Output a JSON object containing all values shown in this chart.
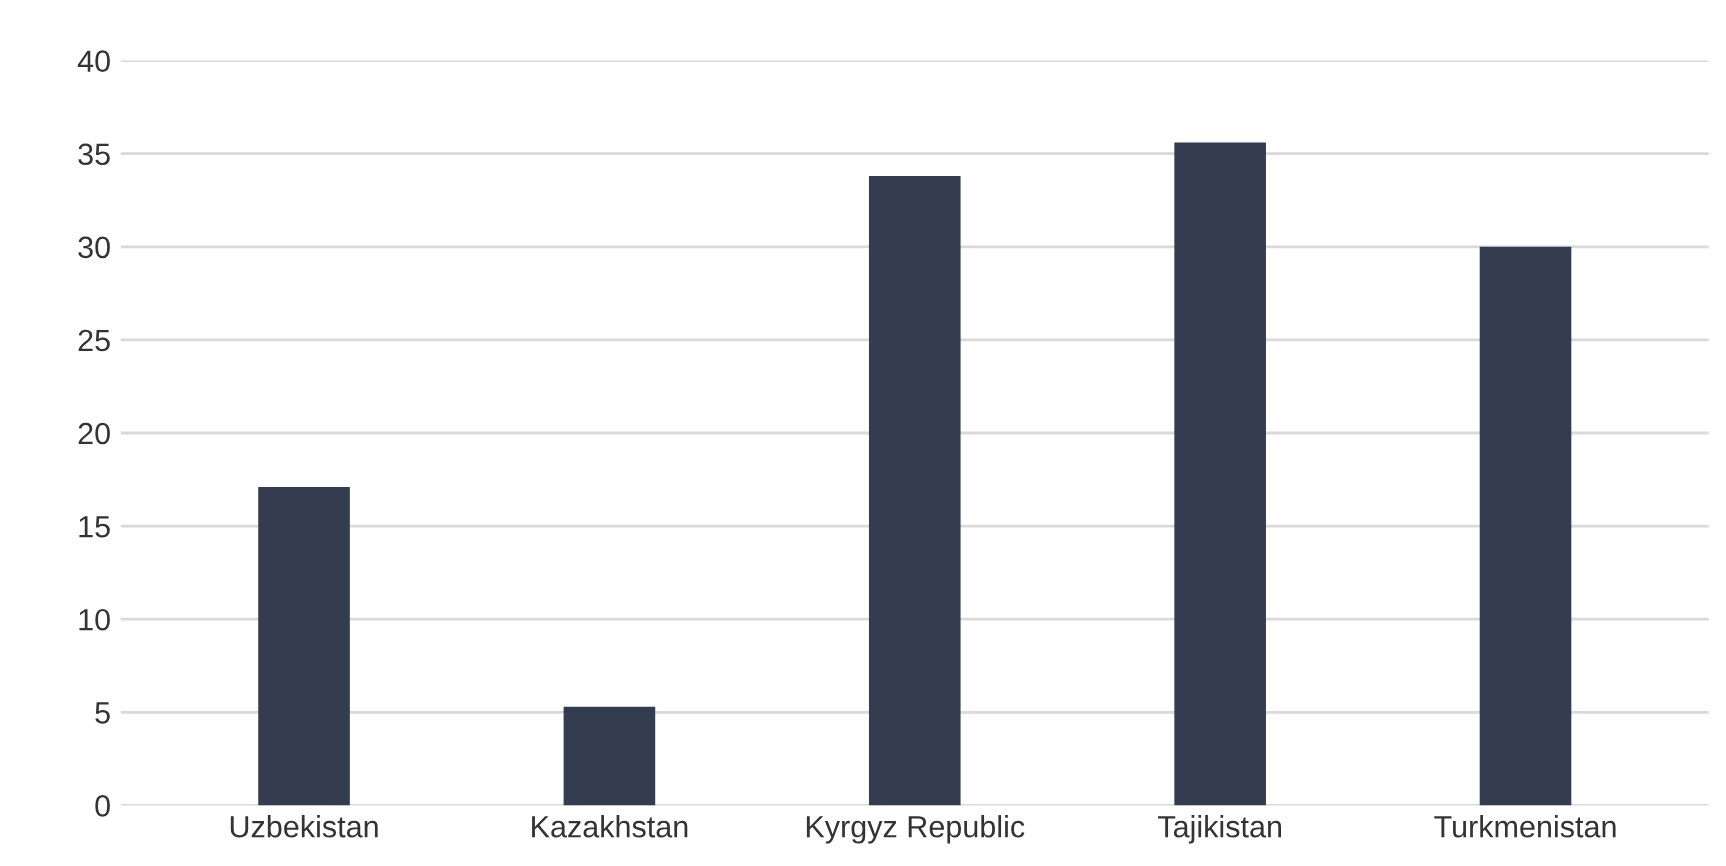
{
  "chart_data": {
    "type": "bar",
    "categories": [
      "Uzbekistan",
      "Kazakhstan",
      "Kyrgyz Republic",
      "Tajikistan",
      "Turkmenistan"
    ],
    "values": [
      17.1,
      5.3,
      33.8,
      35.6,
      30.0
    ],
    "color": "#333d4f",
    "ylim": [
      0,
      40
    ],
    "yticks": [
      0,
      5,
      10,
      15,
      20,
      25,
      30,
      35,
      40
    ],
    "grid": "y"
  }
}
